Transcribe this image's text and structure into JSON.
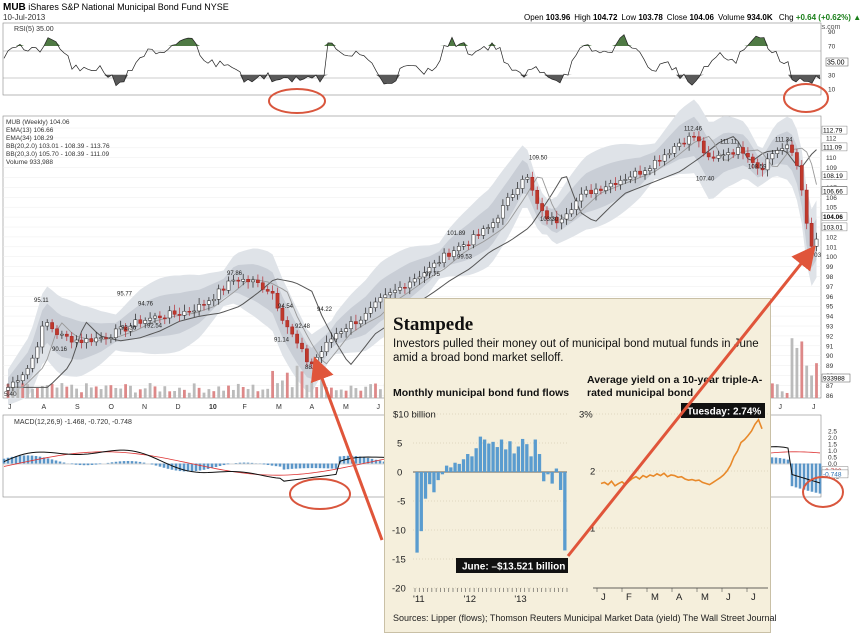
{
  "header": {
    "symbol": "MUB",
    "fund_name": "iShares S&P National Municipal Bond Fund",
    "exchange": "NYSE",
    "date": "10-Jul-2013",
    "quote": [
      {
        "k": "Open",
        "v": "103.96"
      },
      {
        "k": "High",
        "v": "104.72"
      },
      {
        "k": "Low",
        "v": "103.78"
      },
      {
        "k": "Close",
        "v": "104.06"
      },
      {
        "k": "Volume",
        "v": "934.0K"
      }
    ],
    "chg_label": "Chg",
    "chg_value": "+0.64 (+0.62%)",
    "chg_arrow": "▲",
    "brand": "© StockCharts.com"
  },
  "rsi": {
    "legend": "RSI(5) 35.00",
    "ticks": [
      "90",
      "70",
      "50",
      "30",
      "10"
    ],
    "last_value": "35.00",
    "colors": {
      "overbought": "#4f7a44",
      "oversold": "#595959"
    }
  },
  "price": {
    "legend": [
      "MUB (Weekly) 104.06",
      "EMA(13) 106.66",
      "EMA(34) 108.29",
      "BB(20,2.0) 103.01 - 108.39 - 113.76",
      "BB(20,3.0) 105.70 - 108.39 - 111.09",
      "Volume 933,988"
    ],
    "ticks": [
      "113",
      "112",
      "111",
      "110",
      "109",
      "108",
      "107",
      "106",
      "105",
      "104",
      "103",
      "102",
      "101",
      "100",
      "99",
      "98",
      "97",
      "96",
      "95",
      "94",
      "93",
      "92",
      "91",
      "90",
      "89",
      "88",
      "87",
      "86"
    ],
    "right_labels": [
      "112.79",
      "111.09",
      "108.19",
      "106.70",
      "106.66",
      "104.06",
      "103.01"
    ],
    "annotations": [
      "95.11",
      "95.77",
      "94.76",
      "92.36",
      "92.54",
      "90.16",
      "97.86",
      "94.54",
      "92.48",
      "91.14",
      "88.33",
      "94.22",
      "97.75",
      "99.53",
      "101.89",
      "109.50",
      "103.30",
      "107.40",
      "112.46",
      "111.11",
      "108.59",
      "111.34"
    ],
    "volume_label": "933988",
    "x_ticks": [
      "J",
      "A",
      "S",
      "O",
      "N",
      "D",
      "10",
      "F",
      "M",
      "A",
      "M",
      "J",
      "J",
      "A",
      "S",
      "O",
      "N",
      "D",
      "11",
      "F",
      "M",
      "A",
      "M",
      "J",
      "J"
    ],
    "left_low_label": "5.40",
    "bottom_right_label": "03"
  },
  "macd": {
    "legend": "MACD(12,26,9) -1.468, -0.720, -0.748",
    "ticks": [
      "2.5",
      "2.0",
      "1.5",
      "1.0",
      "0.5",
      "0.0",
      "-0.5",
      "-1.0"
    ],
    "right_labels": [
      "-0.720",
      "-0.748"
    ]
  },
  "inset": {
    "title": "Stampede",
    "subtitle": "Investors pulled their money out of municipal bond mutual funds in June amid a broad bond market selloff.",
    "left_title": "Monthly municipal bond fund flows",
    "right_title": "Average yield on a 10-year triple-A-rated municipal bond",
    "callout_left": "June: –$13.521 billion",
    "callout_right": "Tuesday: 2.74%",
    "source": "Sources: Lipper (flows); Thomson Reuters Municipal Market Data (yield)     The Wall Street Journal",
    "bar_color": "#5a9ccf",
    "line_color": "#e8892a"
  },
  "chart_data": [
    {
      "type": "bar",
      "title": "Monthly municipal bond fund flows",
      "ylabel": "",
      "y_ticks": [
        "$10 billion",
        "5",
        "0",
        "-5",
        "-10",
        "-15",
        "-20"
      ],
      "x_ticks": [
        "'11",
        "'12",
        "'13"
      ],
      "ylim": [
        -20,
        10
      ],
      "values": [
        -13.9,
        -10.2,
        -4.6,
        -2.1,
        -3.5,
        -1.4,
        -0.4,
        1.1,
        0.8,
        1.6,
        1.4,
        2.2,
        3.1,
        2.7,
        4.1,
        6.1,
        5.6,
        4.9,
        5.2,
        4.3,
        5.6,
        3.9,
        5.3,
        3.2,
        4.4,
        5.7,
        4.8,
        2.7,
        5.6,
        3.1,
        -1.6,
        -0.4,
        -2.0,
        0.6,
        -3.1,
        -13.521
      ]
    },
    {
      "type": "line",
      "title": "Average yield on a 10-year triple-A-rated municipal bond",
      "y_ticks": [
        "3%",
        "2",
        "1"
      ],
      "ylim": [
        1,
        3
      ],
      "x_ticks": [
        "J",
        "F",
        "M",
        "A",
        "M",
        "J",
        "J"
      ],
      "values": [
        1.78,
        1.8,
        1.76,
        1.82,
        1.74,
        1.78,
        1.81,
        1.76,
        1.82,
        1.87,
        1.9,
        1.86,
        1.92,
        1.89,
        1.93,
        1.91,
        1.95,
        1.92,
        1.96,
        1.9,
        1.93,
        1.92,
        1.89,
        1.9,
        1.86,
        1.84,
        1.85,
        1.83,
        1.84,
        1.8,
        1.78,
        1.76,
        1.8,
        1.84,
        1.88,
        1.93,
        2.0,
        2.1,
        2.25,
        2.35,
        2.5,
        2.55,
        2.62,
        2.7,
        2.82,
        2.9,
        2.74
      ]
    }
  ]
}
